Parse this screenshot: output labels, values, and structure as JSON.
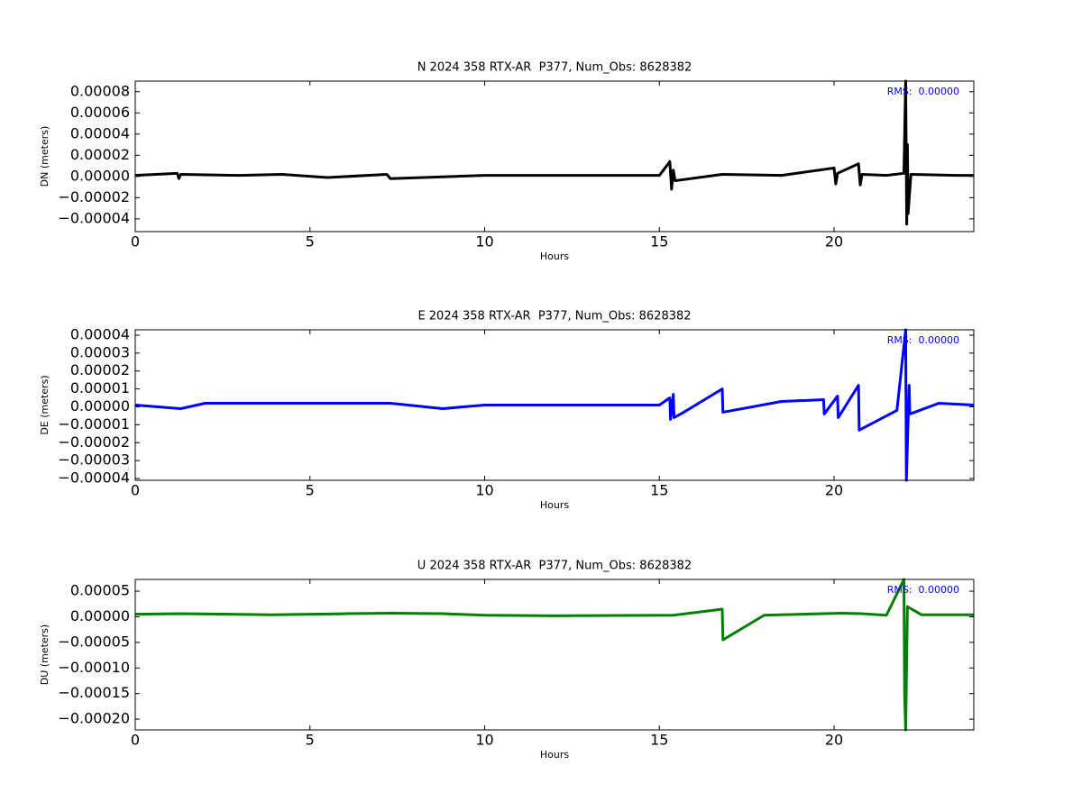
{
  "chart_data": [
    {
      "type": "line",
      "title": "N 2024 358 RTX-AR  P377, Num_Obs: 8628382",
      "x_label": "Hours",
      "y_label": "DN (meters)",
      "annotation": "RMS:  0.00000",
      "annotation_color": "#0000ff",
      "xlim": [
        0,
        24
      ],
      "xticks": [
        0,
        5,
        10,
        15,
        20
      ],
      "ylim": [
        -5.2e-05,
        9e-05
      ],
      "yticks": [
        {
          "value": -4e-05,
          "label": "−0.00004"
        },
        {
          "value": -2e-05,
          "label": "−0.00002"
        },
        {
          "value": 0,
          "label": "0.00000"
        },
        2e-05,
        4e-05,
        6e-05,
        8e-05
      ],
      "x": [
        0,
        1.2,
        1.25,
        1.3,
        3,
        4.2,
        5.5,
        7.2,
        7.3,
        10,
        12,
        15,
        15.3,
        15.35,
        15.4,
        15.45,
        16.8,
        18.5,
        20.0,
        20.05,
        20.1,
        20.7,
        20.75,
        20.8,
        21.5,
        22.0,
        22.05,
        22.08,
        22.1,
        22.12,
        22.2,
        23.5,
        24
      ],
      "series": [
        {
          "name": "DN",
          "color": "#000000",
          "values": [
            1e-06,
            3e-06,
            -2e-06,
            2e-06,
            1e-06,
            2e-06,
            -1e-06,
            2e-06,
            -2e-06,
            1e-06,
            1e-06,
            1e-06,
            1.4e-05,
            -1.2e-05,
            6e-06,
            -4e-06,
            2e-06,
            1e-06,
            8e-06,
            -7e-06,
            3e-06,
            1.2e-05,
            -8e-06,
            2e-06,
            1e-06,
            3e-06,
            9e-05,
            -4.5e-05,
            3e-05,
            -3.5e-05,
            2e-06,
            1e-06,
            1e-06
          ]
        }
      ]
    },
    {
      "type": "line",
      "title": "E 2024 358 RTX-AR  P377, Num_Obs: 8628382",
      "x_label": "Hours",
      "y_label": "DE (meters)",
      "annotation": "RMS:  0.00000",
      "annotation_color": "#0000ff",
      "xlim": [
        0,
        24
      ],
      "xticks": [
        0,
        5,
        10,
        15,
        20
      ],
      "ylim": [
        -4.1e-05,
        4.3e-05
      ],
      "yticks": [
        {
          "value": -4e-05,
          "label": "−0.00004"
        },
        {
          "value": -3e-05,
          "label": "−0.00003"
        },
        {
          "value": -2e-05,
          "label": "−0.00002"
        },
        {
          "value": -1e-05,
          "label": "−0.00001"
        },
        {
          "value": 0,
          "label": "0.00000"
        },
        1e-05,
        2e-05,
        3e-05,
        4e-05
      ],
      "x": [
        0,
        1.3,
        2,
        4,
        6,
        7.3,
        8.8,
        10,
        12.3,
        15,
        15.3,
        15.32,
        15.4,
        15.42,
        15.7,
        16.8,
        16.82,
        18.5,
        19.7,
        19.72,
        20.1,
        20.12,
        20.7,
        20.72,
        21.8,
        22.05,
        22.07,
        22.15,
        22.17,
        23,
        24
      ],
      "series": [
        {
          "name": "DE",
          "color": "#0000ff",
          "values": [
            1e-06,
            -1e-06,
            2e-06,
            2e-06,
            2e-06,
            2e-06,
            -1e-06,
            1e-06,
            1e-06,
            1e-06,
            5e-06,
            -7e-06,
            7e-06,
            -6e-06,
            -3e-06,
            1e-05,
            -3e-06,
            3e-06,
            4e-06,
            -4e-06,
            6e-06,
            -6e-06,
            1.2e-05,
            -1.3e-05,
            -2e-06,
            4.3e-05,
            -4.1e-05,
            1.2e-05,
            -4e-06,
            2e-06,
            1e-06
          ]
        }
      ]
    },
    {
      "type": "line",
      "title": "U 2024 358 RTX-AR  P377, Num_Obs: 8628382",
      "x_label": "Hours",
      "y_label": "DU (meters)",
      "annotation": "RMS:  0.00000",
      "annotation_color": "#0000ff",
      "xlim": [
        0,
        24
      ],
      "xticks": [
        0,
        5,
        10,
        15,
        20
      ],
      "ylim": [
        -0.000221,
        7.3e-05
      ],
      "yticks": [
        {
          "value": -0.0002,
          "label": "−0.00020"
        },
        {
          "value": -0.00015,
          "label": "−0.00015"
        },
        {
          "value": -0.0001,
          "label": "−0.00010"
        },
        {
          "value": -5e-05,
          "label": "−0.00005"
        },
        {
          "value": 0,
          "label": "0.00000"
        },
        5e-05
      ],
      "x": [
        0,
        1.3,
        3.9,
        6,
        7.3,
        8.8,
        10,
        12,
        15.4,
        16.8,
        16.82,
        18,
        20.2,
        20.8,
        21.5,
        22.0,
        22.02,
        22.05,
        22.1,
        22.5,
        24
      ],
      "series": [
        {
          "name": "DU",
          "color": "#008000",
          "values": [
            5e-06,
            6e-06,
            4e-06,
            6e-06,
            7e-06,
            6e-06,
            3e-06,
            2e-06,
            3e-06,
            1.5e-05,
            -4.5e-05,
            3e-06,
            7e-06,
            6e-06,
            3e-06,
            7.3e-05,
            -0.00015,
            -0.000221,
            2e-05,
            4e-06,
            4e-06
          ]
        }
      ]
    }
  ]
}
